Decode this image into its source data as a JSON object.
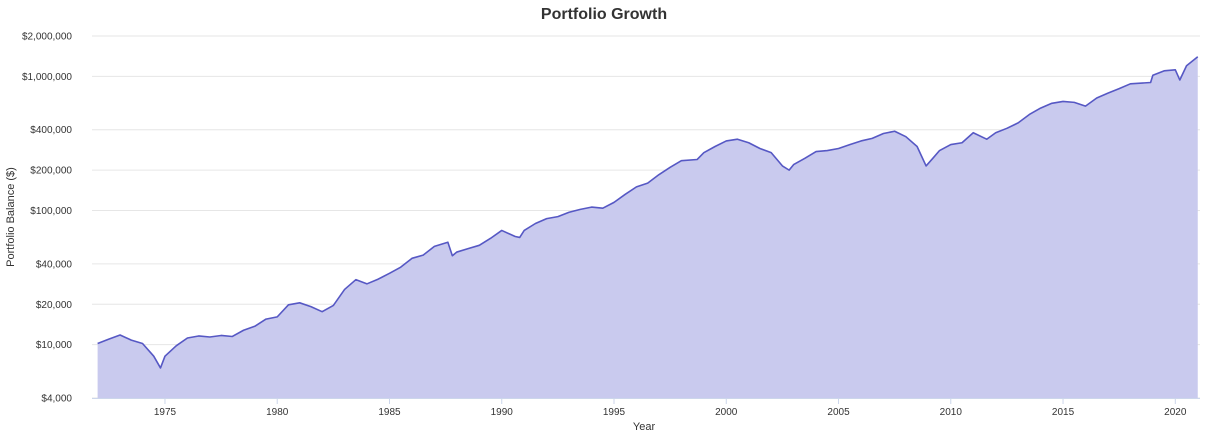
{
  "chart_data": {
    "type": "area",
    "title": "Portfolio Growth",
    "xlabel": "Year",
    "ylabel": "Portfolio Balance ($)",
    "y_scale": "log",
    "ylim": [
      4000,
      2000000
    ],
    "xlim": [
      1972,
      2021.1
    ],
    "y_ticks": [
      4000,
      10000,
      20000,
      40000,
      100000,
      200000,
      400000,
      1000000,
      2000000
    ],
    "y_tick_labels": [
      "$4,000",
      "$10,000",
      "$20,000",
      "$40,000",
      "$100,000",
      "$200,000",
      "$400,000",
      "$1,000,000",
      "$2,000,000"
    ],
    "x_ticks": [
      1975,
      1980,
      1985,
      1990,
      1995,
      2000,
      2005,
      2010,
      2015,
      2020
    ],
    "x_tick_labels": [
      "1975",
      "1980",
      "1985",
      "1990",
      "1995",
      "2000",
      "2005",
      "2010",
      "2015",
      "2020"
    ],
    "grid": true,
    "colors": {
      "line": "#5658c4",
      "fill": "#c9caee"
    },
    "x": [
      1972.0,
      1972.5,
      1973.0,
      1973.5,
      1974.0,
      1974.5,
      1974.8,
      1975.0,
      1975.5,
      1976.0,
      1976.5,
      1977.0,
      1977.5,
      1978.0,
      1978.5,
      1979.0,
      1979.5,
      1980.0,
      1980.5,
      1981.0,
      1981.5,
      1982.0,
      1982.5,
      1983.0,
      1983.5,
      1984.0,
      1984.5,
      1985.0,
      1985.5,
      1986.0,
      1986.5,
      1987.0,
      1987.6,
      1987.8,
      1988.0,
      1988.5,
      1989.0,
      1989.5,
      1990.0,
      1990.6,
      1990.8,
      1991.0,
      1991.5,
      1992.0,
      1992.5,
      1993.0,
      1993.5,
      1994.0,
      1994.5,
      1995.0,
      1995.5,
      1996.0,
      1996.5,
      1997.0,
      1997.5,
      1998.0,
      1998.7,
      1999.0,
      1999.5,
      2000.0,
      2000.5,
      2001.0,
      2001.5,
      2002.0,
      2002.5,
      2002.8,
      2003.0,
      2003.5,
      2004.0,
      2004.5,
      2005.0,
      2005.5,
      2006.0,
      2006.5,
      2007.0,
      2007.5,
      2008.0,
      2008.5,
      2008.9,
      2009.2,
      2009.5,
      2010.0,
      2010.5,
      2011.0,
      2011.6,
      2012.0,
      2012.5,
      2013.0,
      2013.5,
      2014.0,
      2014.5,
      2015.0,
      2015.5,
      2016.0,
      2016.5,
      2017.0,
      2017.5,
      2018.0,
      2018.9,
      2019.0,
      2019.5,
      2020.0,
      2020.2,
      2020.5,
      2021.0
    ],
    "values": [
      10200,
      11000,
      11800,
      10800,
      10200,
      8200,
      6700,
      8200,
      9800,
      11200,
      11600,
      11400,
      11700,
      11500,
      12800,
      13700,
      15500,
      16100,
      19800,
      20500,
      19200,
      17600,
      19600,
      25800,
      30500,
      28400,
      30800,
      34000,
      37800,
      44000,
      46500,
      54000,
      58000,
      46000,
      49000,
      52000,
      55000,
      62000,
      71000,
      64000,
      63000,
      71000,
      80000,
      87000,
      90000,
      97000,
      102000,
      106000,
      104000,
      115000,
      132000,
      150000,
      160000,
      185000,
      210000,
      235000,
      240000,
      270000,
      300000,
      330000,
      340000,
      320000,
      290000,
      270000,
      215000,
      200000,
      220000,
      245000,
      275000,
      280000,
      290000,
      310000,
      330000,
      345000,
      375000,
      390000,
      355000,
      300000,
      215000,
      245000,
      280000,
      310000,
      320000,
      380000,
      340000,
      380000,
      410000,
      450000,
      520000,
      580000,
      630000,
      650000,
      640000,
      600000,
      690000,
      750000,
      810000,
      880000,
      900000,
      1020000,
      1100000,
      1120000,
      940000,
      1200000,
      1400000
    ]
  }
}
